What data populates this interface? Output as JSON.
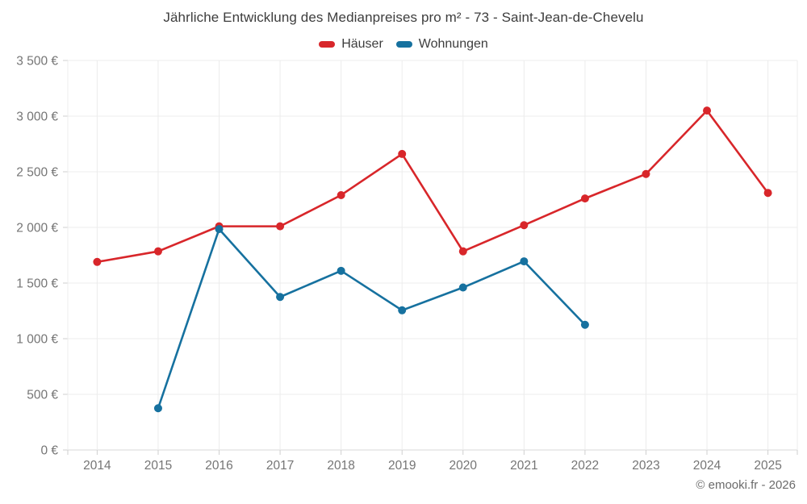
{
  "title": "Jährliche Entwicklung des Medianpreises pro m² - 73 - Saint-Jean-de-Chevelu",
  "legend": [
    {
      "label": "Häuser",
      "color": "#d8262a"
    },
    {
      "label": "Wohnungen",
      "color": "#16719f"
    }
  ],
  "footer": "© emooki.fr - 2026",
  "colors": {
    "grid": "#ececec",
    "baseline": "#d8d8d8",
    "tick": "#cfcfcf",
    "axis_label": "#757575"
  },
  "chart_data": {
    "type": "line",
    "title": "Jährliche Entwicklung des Medianpreises pro m² - 73 - Saint-Jean-de-Chevelu",
    "x": [
      2014,
      2015,
      2016,
      2017,
      2018,
      2019,
      2020,
      2021,
      2022,
      2023,
      2024,
      2025
    ],
    "series": [
      {
        "name": "Häuser",
        "key": "hauser",
        "color": "#d8262a",
        "values": [
          1690,
          1785,
          2010,
          2010,
          2290,
          2660,
          1785,
          2020,
          2260,
          2480,
          3050,
          2310
        ]
      },
      {
        "name": "Wohnungen",
        "key": "wohnungen",
        "color": "#16719f",
        "values": [
          null,
          375,
          1985,
          1375,
          1610,
          1255,
          1460,
          1695,
          1125,
          null,
          null,
          null
        ]
      }
    ],
    "ylim": [
      0,
      3500
    ],
    "ytick_step": 500,
    "ytick_labels": [
      "0 €",
      "500 €",
      "1 000 €",
      "1 500 €",
      "2 000 €",
      "2 500 €",
      "3 000 €",
      "3 500 €"
    ],
    "ylabel": "",
    "xlabel": "",
    "grid": true,
    "legend_position": "top"
  }
}
